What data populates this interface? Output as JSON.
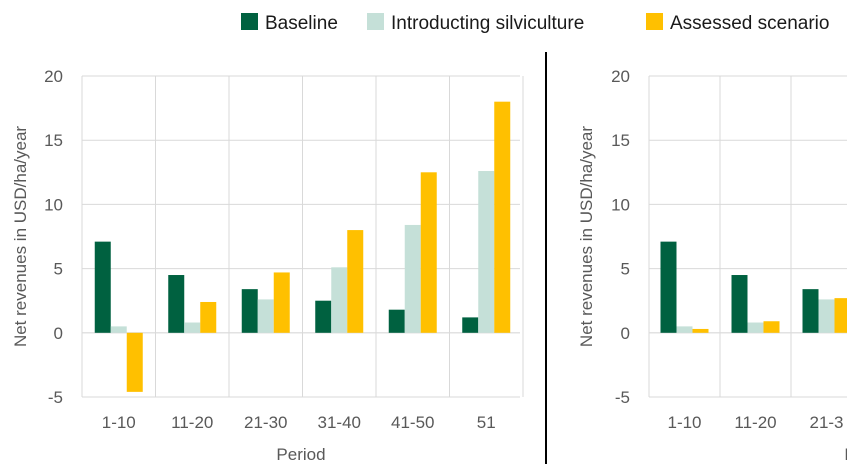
{
  "chart_data": [
    {
      "type": "bar",
      "ylabel": "Net revenues in USD/ha/year",
      "xlabel": "Period",
      "ylim": [
        -5,
        20
      ],
      "yticks": [
        -5,
        0,
        5,
        10,
        15,
        20
      ],
      "grid": true,
      "legend": "top",
      "categories": [
        "1-10",
        "11-20",
        "21-30",
        "31-40",
        "41-50",
        "51"
      ],
      "series": [
        {
          "name": "Baseline",
          "color": "#006140",
          "values": [
            7.1,
            4.5,
            3.4,
            2.5,
            1.8,
            1.2
          ]
        },
        {
          "name": "Introducting silviculture",
          "color": "#c5e0d8",
          "values": [
            0.5,
            0.8,
            2.6,
            5.1,
            8.4,
            12.6
          ]
        },
        {
          "name": "Assessed scenario",
          "color": "#ffc000",
          "values": [
            -4.6,
            2.4,
            4.7,
            8.0,
            12.5,
            18.0
          ]
        }
      ]
    },
    {
      "type": "bar",
      "ylabel": "Net revenues in USD/ha/year",
      "xlabel": "P",
      "ylim": [
        -5,
        20
      ],
      "yticks": [
        -5,
        0,
        5,
        10,
        15,
        20
      ],
      "grid": true,
      "categories": [
        "1-10",
        "11-20",
        "21-3"
      ],
      "series": [
        {
          "name": "Baseline",
          "color": "#006140",
          "values": [
            7.1,
            4.5,
            3.4
          ]
        },
        {
          "name": "Introducting silviculture",
          "color": "#c5e0d8",
          "values": [
            0.5,
            0.8,
            2.6
          ]
        },
        {
          "name": "Assessed scenario",
          "color": "#ffc000",
          "values": [
            0.3,
            0.9,
            2.7
          ]
        }
      ]
    }
  ]
}
